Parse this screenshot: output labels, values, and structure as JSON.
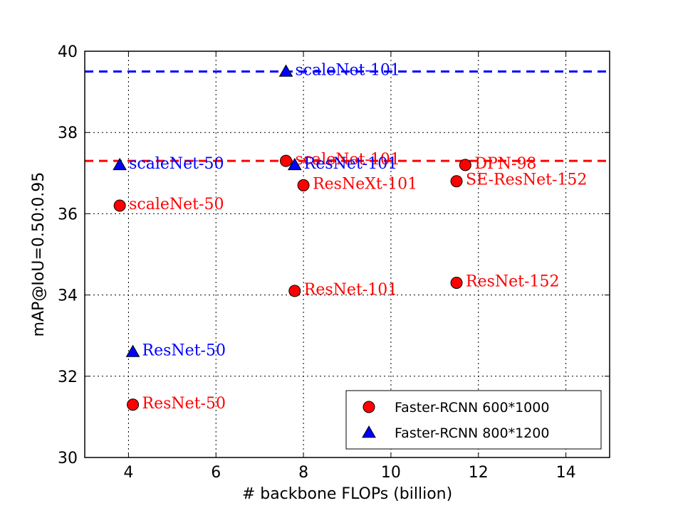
{
  "chart_data": {
    "type": "scatter",
    "xlabel": "# backbone FLOPs (billion)",
    "ylabel": "mAP@IoU=0.50:0.95",
    "xlim": [
      3,
      15
    ],
    "ylim": [
      30,
      40
    ],
    "xticks": [
      4,
      6,
      8,
      10,
      12,
      14
    ],
    "yticks": [
      30,
      32,
      34,
      36,
      38,
      40
    ],
    "grid": true,
    "legend_position": "bottom-right",
    "series": [
      {
        "name": "Faster-RCNN 600*1000",
        "marker": "circle",
        "color": "#ff0000",
        "label_color": "#ff0000",
        "points": [
          {
            "x": 3.8,
            "y": 36.2,
            "label": "scaleNet-50"
          },
          {
            "x": 4.1,
            "y": 31.3,
            "label": "ResNet-50"
          },
          {
            "x": 7.6,
            "y": 37.3,
            "label": "scaleNet-101"
          },
          {
            "x": 8.0,
            "y": 36.7,
            "label": "ResNeXt-101"
          },
          {
            "x": 7.8,
            "y": 34.1,
            "label": "ResNet-101"
          },
          {
            "x": 11.7,
            "y": 37.2,
            "label": "DPN-98"
          },
          {
            "x": 11.5,
            "y": 36.8,
            "label": "SE-ResNet-152"
          },
          {
            "x": 11.5,
            "y": 34.3,
            "label": "ResNet-152"
          }
        ]
      },
      {
        "name": "Faster-RCNN 800*1200",
        "marker": "triangle",
        "color": "#0000ff",
        "label_color": "#0000ff",
        "points": [
          {
            "x": 7.6,
            "y": 39.5,
            "label": "scaleNet-101"
          },
          {
            "x": 3.8,
            "y": 37.2,
            "label": "scaleNet-50"
          },
          {
            "x": 7.8,
            "y": 37.2,
            "label": "ResNet-101"
          },
          {
            "x": 4.1,
            "y": 32.6,
            "label": "ResNet-50"
          }
        ]
      }
    ],
    "reference_lines": [
      {
        "y": 39.5,
        "color": "#0000ff",
        "style": "dashed"
      },
      {
        "y": 37.3,
        "color": "#ff0000",
        "style": "dashed"
      }
    ]
  }
}
